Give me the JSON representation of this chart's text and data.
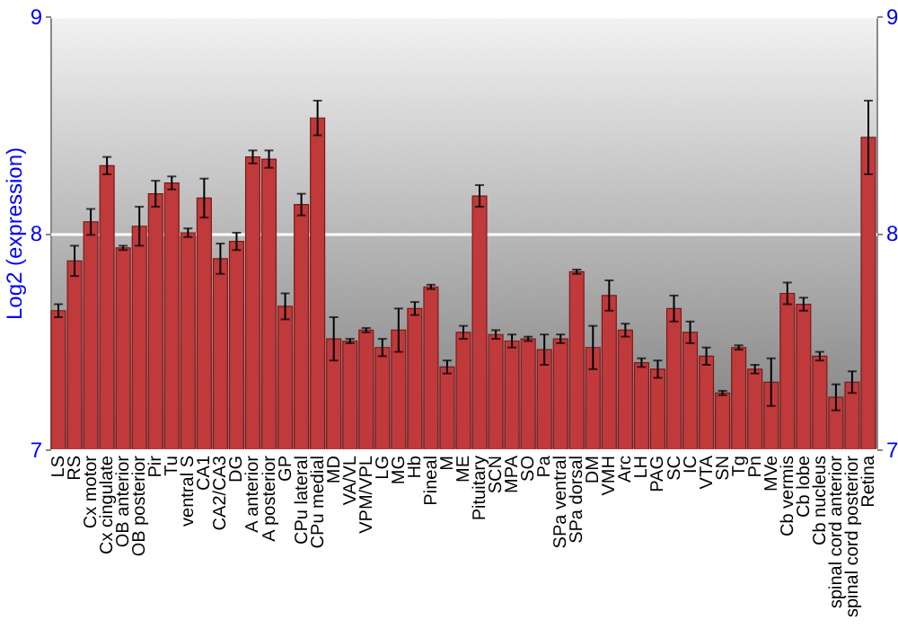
{
  "chart_data": {
    "type": "bar",
    "ylabel": "Log2 (expression)",
    "categories": [
      "LS",
      "RS",
      "Cx motor",
      "Cx cingulate",
      "OB anterior",
      "OB posterior",
      "Pir",
      "Tu",
      "ventral S",
      "CA1",
      "CA2/CA3",
      "DG",
      "A anterior",
      "A posterior",
      "GP",
      "CPu lateral",
      "CPu medial",
      "MD",
      "VA/VL",
      "VPM/VPL",
      "LG",
      "MG",
      "Hb",
      "Pineal",
      "M",
      "ME",
      "Pituitary",
      "SCN",
      "MPA",
      "SO",
      "Pa",
      "SPa ventral",
      "SPa dorsal",
      "DM",
      "VMH",
      "Arc",
      "LH",
      "PAG",
      "SC",
      "IC",
      "VTA",
      "SN",
      "Tg",
      "Pn",
      "MVe",
      "Cb vermis",
      "Cb lobe",
      "Cb nucleus",
      "spinal cord anterior",
      "spinal cord posterior",
      "Retina"
    ],
    "series": [
      {
        "color": "#c0393b",
        "values": [
          7.64,
          7.87,
          8.05,
          8.31,
          7.93,
          8.03,
          8.18,
          8.23,
          8.0,
          8.16,
          7.88,
          7.96,
          8.35,
          8.34,
          7.66,
          8.13,
          8.53,
          7.51,
          7.5,
          7.55,
          7.47,
          7.55,
          7.65,
          7.75,
          7.38,
          7.54,
          8.17,
          7.53,
          7.5,
          7.51,
          7.46,
          7.51,
          7.82,
          7.47,
          7.71,
          7.55,
          7.4,
          7.37,
          7.65,
          7.54,
          7.43,
          7.26,
          7.47,
          7.37,
          7.31,
          7.72,
          7.67,
          7.43,
          7.24,
          7.31,
          8.44
        ],
        "errors": [
          0.03,
          0.07,
          0.06,
          0.04,
          0.01,
          0.09,
          0.06,
          0.03,
          0.02,
          0.09,
          0.07,
          0.04,
          0.03,
          0.04,
          0.06,
          0.05,
          0.08,
          0.1,
          0.01,
          0.01,
          0.04,
          0.1,
          0.03,
          0.01,
          0.03,
          0.03,
          0.05,
          0.02,
          0.03,
          0.01,
          0.07,
          0.02,
          0.01,
          0.1,
          0.07,
          0.03,
          0.02,
          0.04,
          0.06,
          0.05,
          0.04,
          0.01,
          0.01,
          0.02,
          0.11,
          0.05,
          0.03,
          0.02,
          0.06,
          0.05,
          0.17
        ]
      }
    ],
    "ylim": [
      7,
      9
    ],
    "yticks": [
      7,
      8,
      9
    ],
    "y2lim": [
      7,
      9
    ],
    "y2ticks": [
      7,
      8,
      9
    ],
    "grid": "y"
  }
}
